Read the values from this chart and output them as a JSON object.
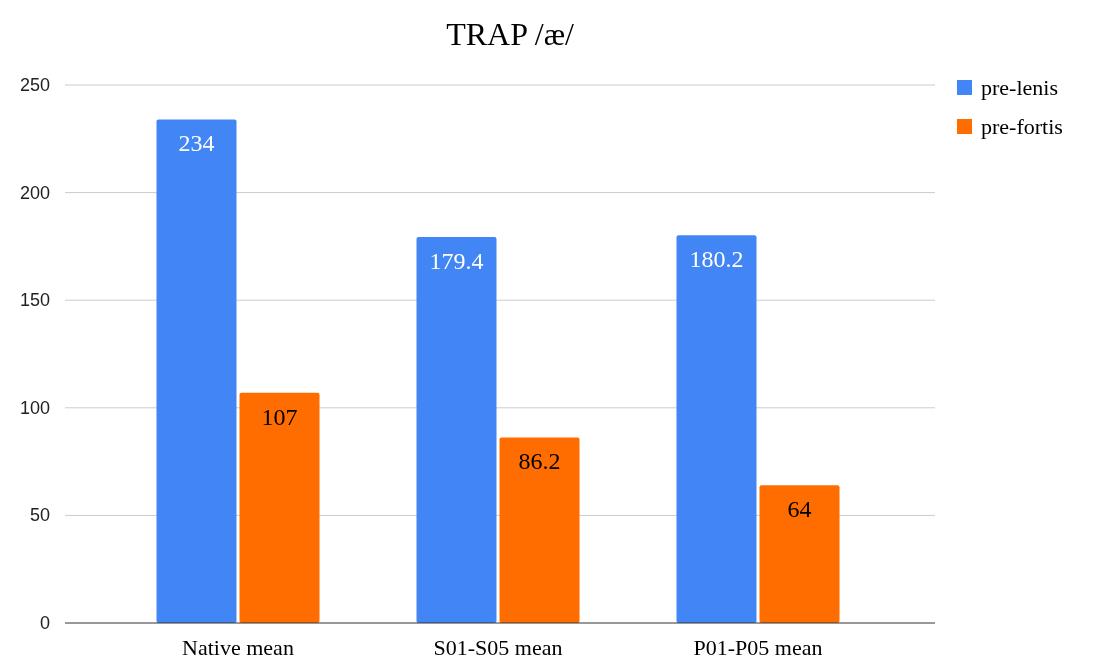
{
  "chart_data": {
    "type": "bar",
    "title": "TRAP /æ/",
    "categories": [
      "Native mean",
      "S01-S05 mean",
      "P01-P05 mean"
    ],
    "series": [
      {
        "name": "pre-lenis",
        "color": "#4285f4",
        "values": [
          234,
          179.4,
          180.2
        ]
      },
      {
        "name": "pre-fortis",
        "color": "#ff6d01",
        "values": [
          107,
          86.2,
          64
        ]
      }
    ],
    "ylim": [
      0,
      250
    ],
    "yticks": [
      0,
      50,
      100,
      150,
      200,
      250
    ],
    "grid": "y",
    "legend": "right",
    "data_labels": true
  }
}
